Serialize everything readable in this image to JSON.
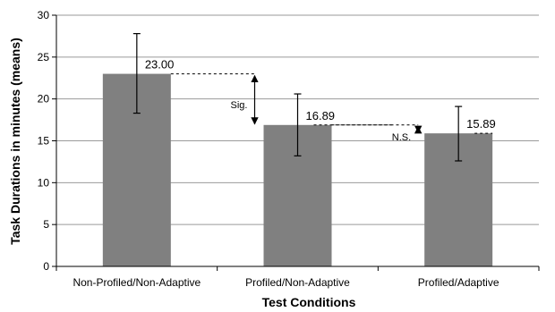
{
  "chart_data": {
    "type": "bar",
    "title": "",
    "xlabel": "Test Conditions",
    "ylabel": "Task Durations in minutes (means)",
    "categories": [
      "Non-Profiled/Non-Adaptive",
      "Profiled/Non-Adaptive",
      "Profiled/Adaptive"
    ],
    "values": [
      23.0,
      16.89,
      15.89
    ],
    "value_labels": [
      "23.00",
      "16.89",
      "15.89"
    ],
    "error_bars": [
      {
        "low": 18.3,
        "high": 27.8
      },
      {
        "low": 13.2,
        "high": 20.6
      },
      {
        "low": 12.6,
        "high": 19.1
      }
    ],
    "ylim": [
      0,
      30
    ],
    "yticks": [
      0,
      5,
      10,
      15,
      20,
      25,
      30
    ],
    "grid": true,
    "bar_color": "#808080",
    "annotations": [
      {
        "label": "Sig.",
        "from": 0,
        "to": 1
      },
      {
        "label": "N.S.",
        "from": 1,
        "to": 2
      }
    ]
  }
}
